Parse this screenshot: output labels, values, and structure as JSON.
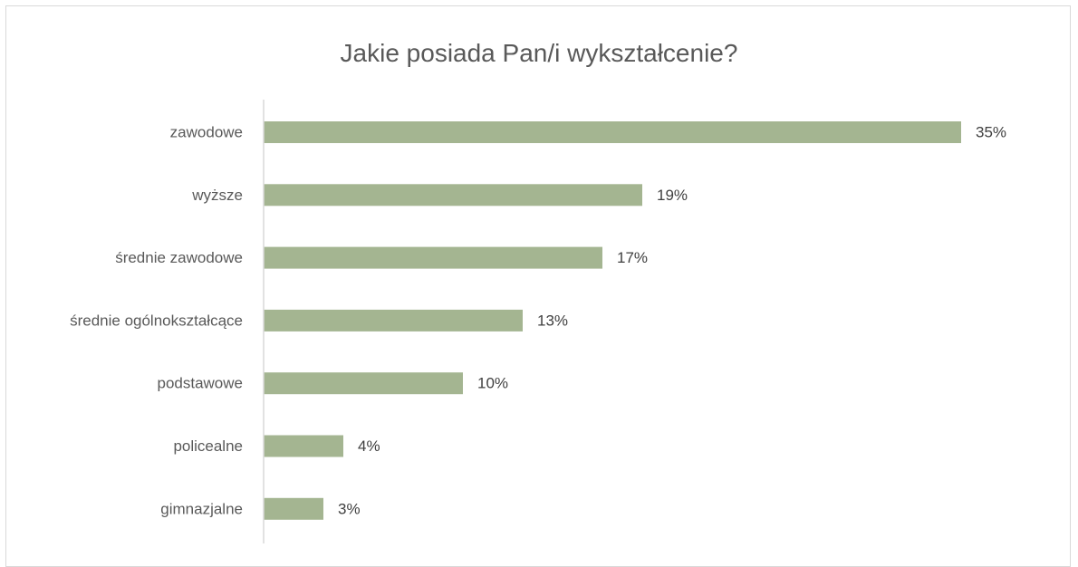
{
  "chart_data": {
    "type": "bar",
    "orientation": "horizontal",
    "title": "Jakie posiada Pan/i wykształcenie?",
    "categories": [
      "zawodowe",
      "wyższe",
      "średnie zawodowe",
      "średnie ogólnokształcące",
      "podstawowe",
      "policealne",
      "gimnazjalne"
    ],
    "values": [
      35,
      19,
      17,
      13,
      10,
      4,
      3
    ],
    "value_labels": [
      "35%",
      "19%",
      "17%",
      "13%",
      "10%",
      "4%",
      "3%"
    ],
    "unit": "%",
    "xlim": [
      0,
      35
    ],
    "grid": false,
    "legend": "none",
    "bar_color": "#a4b591",
    "axis_color": "#d9d9d9"
  }
}
